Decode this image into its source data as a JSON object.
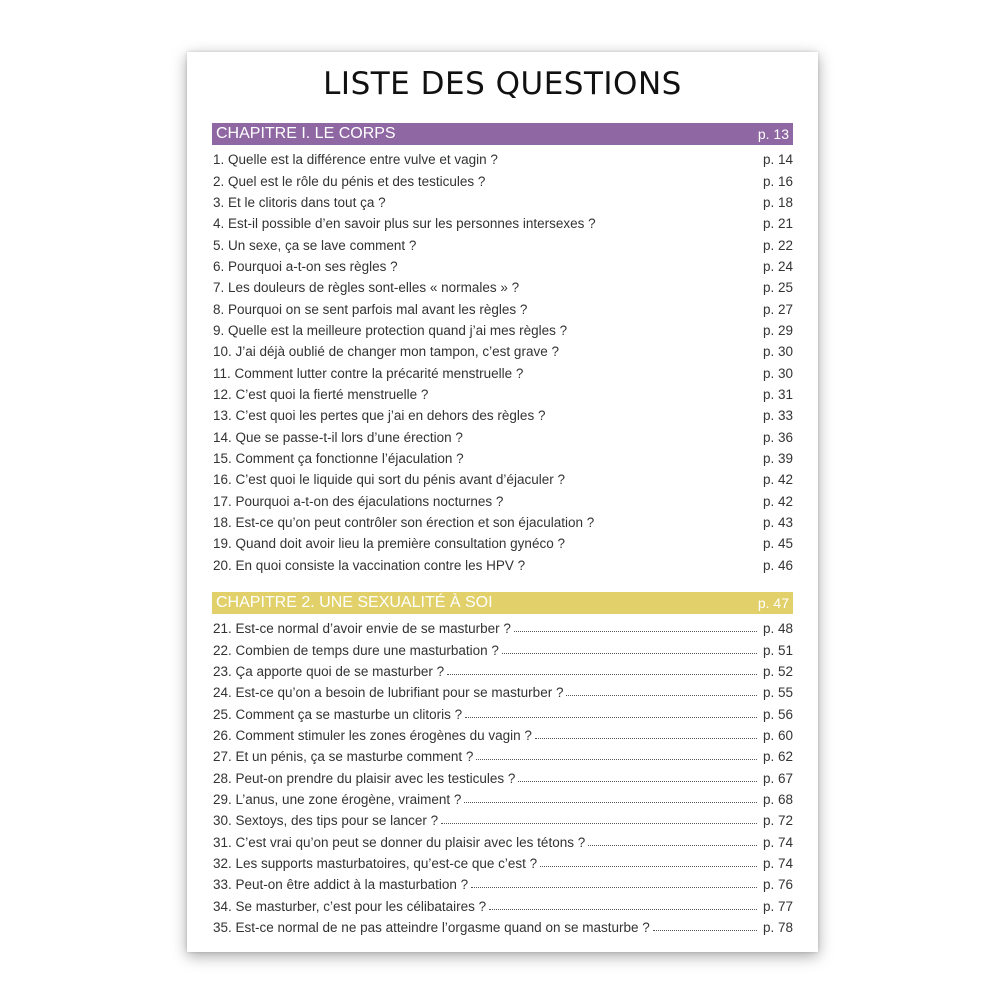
{
  "title": "LISTE DES QUESTIONS",
  "colors": {
    "chapter1": "#8f67a3",
    "chapter2": "#e2d16b"
  },
  "chapters": [
    {
      "label": "CHAPITRE I. LE CORPS",
      "page": "p. 13",
      "questions": [
        {
          "q": "1. Quelle est la différence entre vulve et vagin ?",
          "p": "p. 14"
        },
        {
          "q": "2. Quel est le rôle du pénis et des testicules ?",
          "p": "p. 16"
        },
        {
          "q": "3. Et le clitoris dans tout ça ?",
          "p": "p. 18"
        },
        {
          "q": "4. Est-il possible d’en savoir plus sur les personnes intersexes ?",
          "p": "p. 21"
        },
        {
          "q": "5. Un sexe, ça se lave comment ?",
          "p": "p. 22"
        },
        {
          "q": "6. Pourquoi a-t-on ses règles ?",
          "p": "p. 24"
        },
        {
          "q": "7. Les douleurs de règles sont-elles « normales » ?",
          "p": "p. 25"
        },
        {
          "q": "8. Pourquoi on se sent parfois mal avant les règles ?",
          "p": "p. 27"
        },
        {
          "q": "9. Quelle est la meilleure protection quand j’ai mes règles ?",
          "p": "p. 29"
        },
        {
          "q": "10. J’ai déjà oublié de changer mon tampon, c’est grave ?",
          "p": "p. 30"
        },
        {
          "q": "11. Comment lutter contre la précarité menstruelle ?",
          "p": "p. 30"
        },
        {
          "q": "12. C’est quoi la fierté menstruelle ?",
          "p": "p. 31"
        },
        {
          "q": "13. C’est quoi les pertes que j’ai en dehors des règles ?",
          "p": "p. 33"
        },
        {
          "q": "14. Que se passe-t-il lors d’une érection ?",
          "p": "p. 36"
        },
        {
          "q": "15. Comment ça fonctionne l’éjaculation ?",
          "p": "p. 39"
        },
        {
          "q": "16. C’est quoi le liquide qui sort du pénis avant d’éjaculer ?",
          "p": "p. 42"
        },
        {
          "q": "17. Pourquoi a-t-on des éjaculations nocturnes ?",
          "p": "p. 42"
        },
        {
          "q": "18. Est-ce qu’on peut contrôler son érection et son éjaculation ?",
          "p": "p. 43"
        },
        {
          "q": "19. Quand doit avoir lieu la première consultation gynéco ?",
          "p": "p. 45"
        },
        {
          "q": "20. En quoi consiste la vaccination contre les HPV ?",
          "p": "p. 46"
        }
      ]
    },
    {
      "label": "CHAPITRE 2. UNE SEXUALITÉ À SOI",
      "page": "p. 47",
      "questions": [
        {
          "q": "21. Est-ce normal d’avoir envie de se masturber ?",
          "p": "p. 48"
        },
        {
          "q": "22. Combien de temps dure une masturbation ?",
          "p": "p. 51"
        },
        {
          "q": "23. Ça apporte quoi de se masturber ?",
          "p": "p. 52"
        },
        {
          "q": "24. Est-ce qu’on a besoin de lubrifiant pour se masturber ?",
          "p": "p. 55"
        },
        {
          "q": "25. Comment ça se masturbe un clitoris ?",
          "p": "p. 56"
        },
        {
          "q": "26. Comment stimuler les zones érogènes du vagin ?",
          "p": "p. 60"
        },
        {
          "q": "27. Et un pénis, ça se masturbe comment ?",
          "p": "p. 62"
        },
        {
          "q": "28. Peut-on prendre du plaisir avec les testicules ?",
          "p": "p. 67"
        },
        {
          "q": "29. L’anus, une zone érogène, vraiment ?",
          "p": "p. 68"
        },
        {
          "q": "30. Sextoys, des tips pour se lancer ?",
          "p": "p. 72"
        },
        {
          "q": "31. C’est vrai qu’on peut se donner du plaisir avec les tétons ?",
          "p": "p. 74"
        },
        {
          "q": "32. Les supports masturbatoires, qu’est-ce que c’est ?",
          "p": "p. 74"
        },
        {
          "q": "33. Peut-on être addict à la masturbation ?",
          "p": "p. 76"
        },
        {
          "q": "34. Se masturber, c’est pour les célibataires ?",
          "p": "p. 77"
        },
        {
          "q": "35. Est-ce normal de ne pas atteindre l’orgasme quand on se masturbe ?",
          "p": "p. 78"
        }
      ]
    }
  ]
}
